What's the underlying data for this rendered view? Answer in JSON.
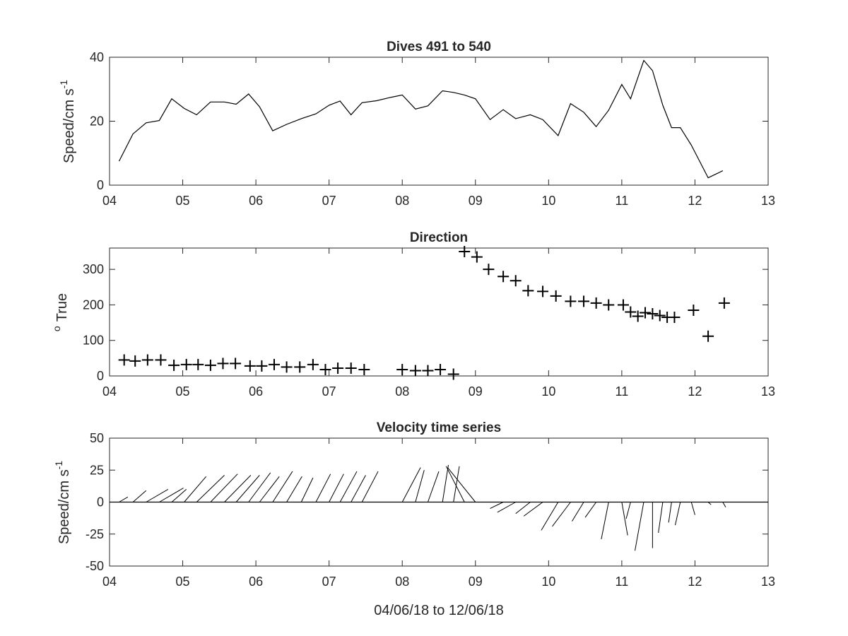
{
  "chart_data": [
    {
      "type": "line",
      "title": "Dives 491 to 540",
      "ylabel": "Speed/cm s",
      "ylabel_superscript": "-1",
      "xlabel": "",
      "xlim": [
        4,
        13
      ],
      "ylim": [
        0,
        40
      ],
      "xticks": [
        "04",
        "05",
        "06",
        "07",
        "08",
        "09",
        "10",
        "11",
        "12",
        "13"
      ],
      "yticks": [
        0,
        20,
        40
      ],
      "color": "#000000",
      "series": [
        {
          "x": [
            4.13,
            4.32,
            4.5,
            4.68,
            4.85,
            5.02,
            5.19,
            5.38,
            5.57,
            5.73,
            5.9,
            6.05,
            6.23,
            6.42,
            6.62,
            6.82,
            7.0,
            7.15,
            7.3,
            7.45,
            7.65,
            7.85,
            8.0,
            8.18,
            8.35,
            8.55,
            8.7,
            8.85,
            9.0,
            9.2,
            9.38,
            9.55,
            9.75,
            9.92,
            10.13,
            10.3,
            10.48,
            10.65,
            10.82,
            11.0,
            11.12,
            11.3,
            11.42,
            11.56,
            11.68,
            11.8,
            11.95,
            12.18,
            12.38
          ],
          "y": [
            7.5,
            16,
            19.5,
            20.2,
            27,
            24,
            22,
            26,
            26,
            25.3,
            28.5,
            24.5,
            17,
            19,
            20.8,
            22.3,
            25,
            26.3,
            22,
            25.8,
            26.4,
            27.5,
            28.2,
            23.8,
            24.8,
            29.5,
            29,
            28.2,
            27,
            20.5,
            23.6,
            20.8,
            22,
            20.5,
            15.5,
            25.5,
            22.8,
            18.3,
            23.4,
            31.5,
            27,
            39,
            35.8,
            25,
            18,
            18,
            12.5,
            2.3,
            4.5
          ]
        }
      ]
    },
    {
      "type": "scatter",
      "title": "Direction",
      "ylabel": "True",
      "ylabel_superscript": "o",
      "xlabel": "",
      "xlim": [
        4,
        13
      ],
      "ylim": [
        0,
        360
      ],
      "xticks": [
        "04",
        "05",
        "06",
        "07",
        "08",
        "09",
        "10",
        "11",
        "12",
        "13"
      ],
      "yticks": [
        0,
        100,
        200,
        300
      ],
      "marker": "+",
      "series": [
        {
          "x": [
            4.2,
            4.35,
            4.52,
            4.7,
            4.88,
            5.05,
            5.21,
            5.38,
            5.55,
            5.72,
            5.92,
            6.08,
            6.25,
            6.42,
            6.6,
            6.78,
            6.95,
            7.12,
            7.3,
            7.48,
            8.0,
            8.18,
            8.35,
            8.52,
            8.7,
            8.85,
            9.02,
            9.18,
            9.38,
            9.55,
            9.72,
            9.92,
            10.1,
            10.3,
            10.48,
            10.65,
            10.82,
            11.02,
            11.12,
            11.22,
            11.32,
            11.42,
            11.52,
            11.62,
            11.72,
            11.98,
            12.18,
            12.4
          ],
          "y": [
            45,
            42,
            45,
            45,
            30,
            32,
            32,
            30,
            35,
            35,
            28,
            28,
            32,
            25,
            25,
            32,
            18,
            22,
            22,
            18,
            18,
            15,
            15,
            18,
            5,
            350,
            335,
            300,
            280,
            268,
            240,
            238,
            225,
            210,
            210,
            205,
            200,
            200,
            180,
            168,
            178,
            175,
            170,
            165,
            165,
            185,
            112,
            205
          ]
        }
      ]
    },
    {
      "type": "quiver",
      "title": "Velocity time series",
      "ylabel": "Speed/cm s",
      "ylabel_superscript": "-1",
      "xlabel": "04/06/18 to 12/06/18",
      "xlim": [
        4,
        13
      ],
      "ylim": [
        -50,
        50
      ],
      "xticks": [
        "04",
        "05",
        "06",
        "07",
        "08",
        "09",
        "10",
        "11",
        "12",
        "13"
      ],
      "yticks": [
        50,
        25,
        0,
        -25,
        -50
      ],
      "baseline": 0,
      "stick_x_origin_days": [
        4.13,
        4.32,
        4.5,
        4.68,
        4.85,
        5.02,
        5.19,
        5.38,
        5.57,
        5.73,
        5.9,
        6.05,
        6.23,
        6.42,
        6.62,
        6.82,
        7.0,
        7.15,
        7.3,
        7.45,
        8.0,
        8.18,
        8.35,
        8.55,
        8.7,
        8.85,
        9.0,
        9.2,
        9.38,
        9.55,
        9.75,
        9.92,
        10.13,
        10.3,
        10.48,
        10.65,
        10.82,
        11.0,
        11.12,
        11.3,
        11.42,
        11.56,
        11.68,
        11.8,
        11.95,
        12.18,
        12.38
      ],
      "stick_x_end_days": [
        4.25,
        4.5,
        4.8,
        5.01,
        5.05,
        5.32,
        5.57,
        5.75,
        5.93,
        6.05,
        6.2,
        6.32,
        6.5,
        6.63,
        6.78,
        7.02,
        7.2,
        7.38,
        7.5,
        7.67,
        8.25,
        8.3,
        8.5,
        8.63,
        8.78,
        8.6,
        8.62,
        9.05,
        9.2,
        9.3,
        9.55,
        9.66,
        9.9,
        10.05,
        10.32,
        10.5,
        10.72,
        11.08,
        11.06,
        11.18,
        11.42,
        11.5,
        11.64,
        11.73,
        12.0,
        12.22,
        12.42
      ],
      "stick_y_end": [
        4,
        9,
        10,
        11,
        10,
        20,
        21,
        22,
        21,
        21,
        23,
        20,
        24,
        20,
        19,
        22,
        22,
        24,
        21,
        24,
        27,
        25,
        24,
        29,
        28,
        28,
        27,
        0,
        -5,
        -8,
        -9,
        -11,
        -22,
        -19,
        -15,
        -12,
        -29,
        -26,
        -13,
        -38,
        -36,
        -24,
        -16,
        -18,
        -10,
        -2,
        -4
      ]
    }
  ]
}
